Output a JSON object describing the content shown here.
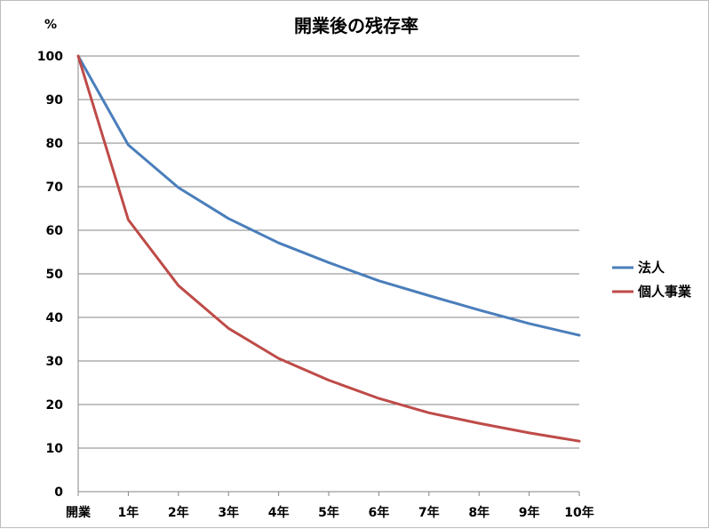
{
  "chart_data": {
    "type": "line",
    "title": "開業後の残存率",
    "yunit": "%",
    "xlabel": "",
    "ylabel": "",
    "categories": [
      "開業",
      "1年",
      "2年",
      "3年",
      "4年",
      "5年",
      "6年",
      "7年",
      "8年",
      "9年",
      "10年"
    ],
    "ylim": [
      0,
      100
    ],
    "yticks": [
      0,
      10,
      20,
      30,
      40,
      50,
      60,
      70,
      80,
      90,
      100
    ],
    "grid": true,
    "legend_position": "right",
    "series": [
      {
        "name": "法人",
        "color": "#4a7ebb",
        "values": [
          100,
          79.6,
          69.8,
          62.7,
          57.1,
          52.6,
          48.4,
          45.0,
          41.7,
          38.6,
          35.9
        ]
      },
      {
        "name": "個人事業",
        "color": "#be4b48",
        "values": [
          100,
          62.4,
          47.3,
          37.5,
          30.6,
          25.6,
          21.4,
          18.1,
          15.7,
          13.5,
          11.6
        ]
      }
    ]
  }
}
